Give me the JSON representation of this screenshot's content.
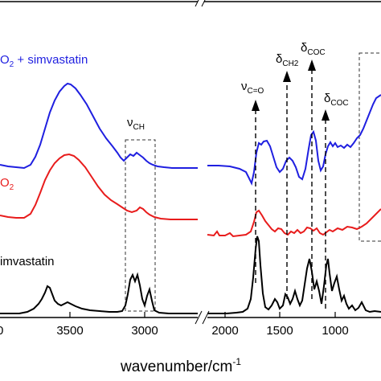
{
  "chart_data": {
    "type": "line",
    "xlabel": "wavenumber/cm",
    "xlabel_sup": "-1",
    "x_reversed": true,
    "x_break": [
      2100,
      2300
    ],
    "xlim_left_panel": [
      3900,
      2300
    ],
    "xlim_right_panel": [
      2100,
      800
    ],
    "x_ticks": [
      {
        "value": 3500,
        "label": "3500"
      },
      {
        "value": 3000,
        "label": "3000"
      },
      {
        "value": 2000,
        "label": "2000"
      },
      {
        "value": 1500,
        "label": "1500"
      },
      {
        "value": 1000,
        "label": "1000"
      }
    ],
    "series": [
      {
        "label_main": "O",
        "label_sub": "2",
        "label_rest": " + simvastatin",
        "color": "#1f1fe0"
      },
      {
        "label_main": "O",
        "label_sub": "2",
        "label_rest": "",
        "color": "#e81c1c"
      },
      {
        "label_main": "imvastatin",
        "label_sub": "",
        "label_rest": "",
        "color": "#000000"
      }
    ],
    "annotations": [
      {
        "main": "ν",
        "sub": "CH"
      },
      {
        "main": "ν",
        "sub": "C=O"
      },
      {
        "main": "δ",
        "sub": "CH2"
      },
      {
        "main": "δ",
        "sub": "COC"
      },
      {
        "main": "δ",
        "sub": "COC"
      }
    ],
    "y_axis_visible": false,
    "grid": false
  }
}
